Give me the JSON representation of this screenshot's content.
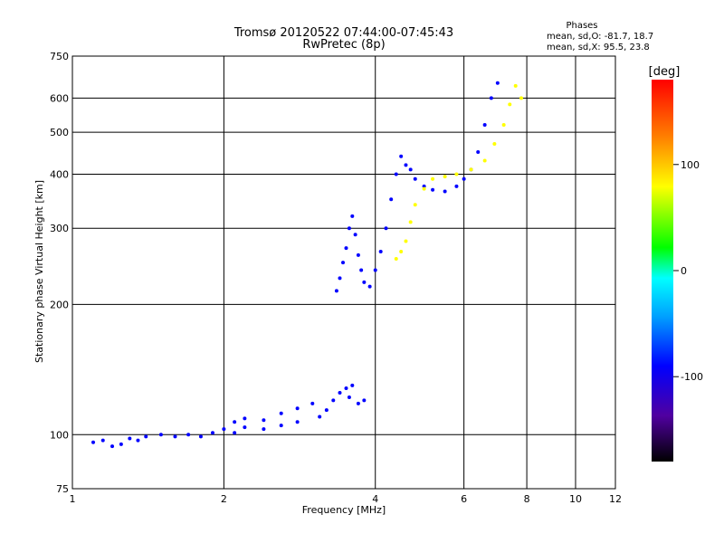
{
  "header": {
    "title_line1": "Tromsø 20120522 07:44:00-07:45:43",
    "title_line2": "RwPretec (8p)",
    "phases_title": "Phases",
    "phases_o": "mean, sd,O: -81.7, 18.7",
    "phases_x": "mean, sd,X:  95.5, 23.8"
  },
  "chart_data": {
    "type": "scatter",
    "xlabel": "Frequency [MHz]",
    "ylabel": "Stationary phase Virtual Height [km]",
    "x_scale": "log",
    "y_scale": "log",
    "xlim": [
      1,
      12
    ],
    "ylim": [
      75,
      750
    ],
    "grid": true,
    "x_ticks": [
      1,
      2,
      4,
      6,
      8,
      10,
      12
    ],
    "x_tick_labels": [
      "1",
      "2",
      "4",
      "6",
      "8",
      "10",
      "12"
    ],
    "y_ticks": [
      75,
      100,
      200,
      300,
      400,
      500,
      600,
      750
    ],
    "y_tick_labels": [
      "75",
      "100",
      "200",
      "300",
      "400",
      "500",
      "600",
      "750"
    ],
    "colorbar": {
      "label": "[deg]",
      "range": [
        -180,
        180
      ],
      "ticks": [
        100,
        0,
        -100
      ],
      "tick_labels": [
        "100",
        "0",
        "-100"
      ],
      "colors": [
        "#000000",
        "#5000a0",
        "#0000ff",
        "#00a0ff",
        "#00ffff",
        "#00ff00",
        "#ffff00",
        "#ff8000",
        "#ff0000"
      ]
    },
    "series": [
      {
        "name": "",
        "color_phase": -100,
        "points": [
          [
            1.1,
            96
          ],
          [
            1.15,
            97
          ],
          [
            1.2,
            94
          ],
          [
            1.25,
            95
          ],
          [
            1.3,
            98
          ],
          [
            1.35,
            97
          ],
          [
            1.4,
            99
          ],
          [
            1.5,
            100
          ],
          [
            1.6,
            99
          ],
          [
            1.7,
            100
          ],
          [
            1.8,
            99
          ],
          [
            1.9,
            101
          ],
          [
            2.0,
            103
          ],
          [
            2.1,
            101
          ],
          [
            2.2,
            104
          ],
          [
            2.4,
            103
          ],
          [
            2.6,
            105
          ],
          [
            2.8,
            107
          ]
        ]
      },
      {
        "name": "",
        "color_phase": -100,
        "points": [
          [
            2.1,
            107
          ],
          [
            2.2,
            109
          ],
          [
            2.4,
            108
          ],
          [
            2.6,
            112
          ],
          [
            2.8,
            115
          ],
          [
            3.0,
            118
          ],
          [
            3.1,
            110
          ],
          [
            3.2,
            114
          ],
          [
            3.3,
            120
          ],
          [
            3.4,
            125
          ],
          [
            3.5,
            128
          ],
          [
            3.55,
            122
          ],
          [
            3.6,
            130
          ],
          [
            3.7,
            118
          ],
          [
            3.8,
            120
          ]
        ]
      },
      {
        "name": "",
        "color_phase": -100,
        "points": [
          [
            3.35,
            215
          ],
          [
            3.4,
            230
          ],
          [
            3.45,
            250
          ],
          [
            3.5,
            270
          ],
          [
            3.55,
            300
          ],
          [
            3.6,
            320
          ],
          [
            3.65,
            290
          ],
          [
            3.7,
            260
          ],
          [
            3.75,
            240
          ],
          [
            3.8,
            225
          ],
          [
            3.9,
            220
          ],
          [
            4.0,
            240
          ],
          [
            4.1,
            265
          ],
          [
            4.2,
            300
          ],
          [
            4.3,
            350
          ],
          [
            4.4,
            400
          ],
          [
            4.5,
            440
          ],
          [
            4.6,
            420
          ],
          [
            4.7,
            410
          ],
          [
            4.8,
            390
          ],
          [
            5.0,
            375
          ],
          [
            5.2,
            368
          ],
          [
            5.5,
            365
          ],
          [
            5.8,
            375
          ],
          [
            6.0,
            390
          ],
          [
            6.2,
            410
          ],
          [
            6.4,
            450
          ],
          [
            6.6,
            520
          ],
          [
            6.8,
            600
          ],
          [
            7.0,
            650
          ]
        ]
      },
      {
        "name": "",
        "color_phase": 100,
        "points": [
          [
            4.4,
            255
          ],
          [
            4.5,
            265
          ],
          [
            4.6,
            280
          ],
          [
            4.7,
            310
          ],
          [
            4.8,
            340
          ],
          [
            5.0,
            370
          ],
          [
            5.2,
            390
          ],
          [
            5.5,
            395
          ],
          [
            5.8,
            400
          ],
          [
            6.2,
            410
          ],
          [
            6.6,
            430
          ],
          [
            6.9,
            470
          ],
          [
            7.2,
            520
          ],
          [
            7.4,
            580
          ],
          [
            7.6,
            640
          ],
          [
            7.8,
            600
          ]
        ]
      }
    ]
  }
}
